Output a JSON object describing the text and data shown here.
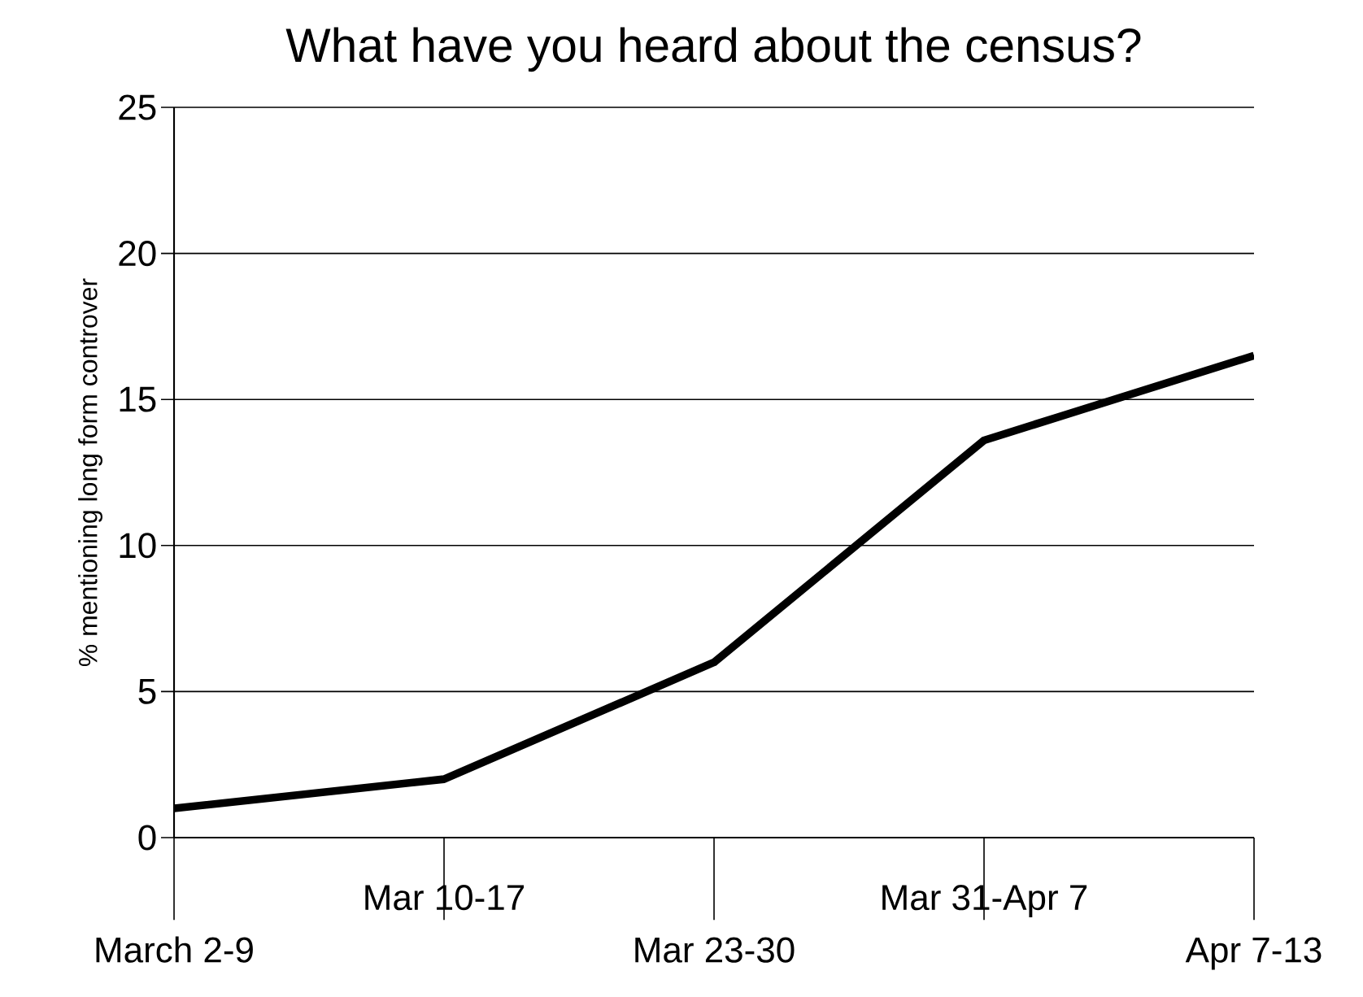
{
  "chart_data": {
    "type": "line",
    "title": "What have you heard about the census?",
    "ylabel": "% mentioning long form controver",
    "categories": [
      "March 2-9",
      "Mar 10-17",
      "Mar 23-30",
      "Mar 31-Apr 7",
      "Apr 7-13"
    ],
    "values": [
      1,
      2,
      6,
      13.6,
      16.5
    ],
    "color": "#000000",
    "ylim": [
      0,
      25
    ],
    "yticks": [
      0,
      5,
      10,
      15,
      20,
      25
    ],
    "grid": "y"
  }
}
